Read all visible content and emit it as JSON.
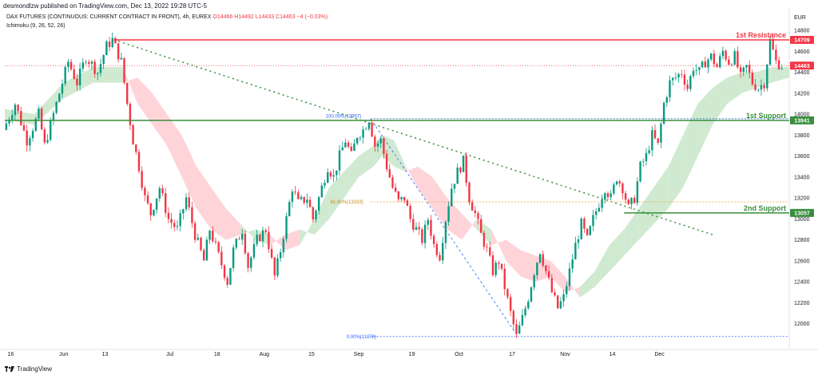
{
  "header": {
    "publisher_line": "desmondlzw published on TradingView.com, Dec 13, 2022 19:28 UTC-5",
    "symbol": "DAX FUTURES (CONTINUOUS: CURRENT CONTRACT IN FRONT), 4h, EUREX",
    "ohlc": {
      "o": "O14466",
      "h": "H14492",
      "l": "L14433",
      "c": "C14463",
      "chg": "−4 (−0.03%)"
    },
    "indicator": "Ichimoku (9, 26, 52, 26)"
  },
  "footer": {
    "brand": "TradingView",
    "brand_icon": "tradingview-logo-icon"
  },
  "chart_data": {
    "type": "candlestick",
    "currency": "EUR",
    "ylim": [
      11800,
      14800
    ],
    "y_ticks": [
      12000,
      12200,
      12400,
      12600,
      12800,
      13000,
      13200,
      13400,
      13600,
      13800,
      14000,
      14200,
      14400,
      14600,
      14800
    ],
    "x_ticks": [
      "16",
      "Jun",
      "13",
      "Jul",
      "18",
      "Aug",
      "15",
      "Sep",
      "19",
      "Oct",
      "17",
      "Nov",
      "14",
      "Dec"
    ],
    "colors": {
      "up": "#089981",
      "down": "#f23645",
      "resistance": "#f23645",
      "support": "#388e3c",
      "trend": "#388e3c",
      "fib": "#2962ff",
      "fib618": "#f0a030",
      "cloud_bull": "#c8e6c9",
      "cloud_bear": "#ffcdd2"
    },
    "levels": [
      {
        "label": "1st Resistance",
        "value": 14709,
        "tag": "14709",
        "color": "#f23645"
      },
      {
        "label": "1st Support",
        "value": 13941,
        "tag": "13941",
        "color": "#388e3c"
      },
      {
        "label": "2nd Support",
        "value": 13057,
        "tag": "13057",
        "color": "#388e3c"
      }
    ],
    "last_price": {
      "value": 14463,
      "tag": "14463"
    },
    "fib_labels": [
      {
        "text": "100.00%(13957)",
        "value": 13957
      },
      {
        "text": "61.80%(13163)",
        "value": 13163
      },
      {
        "text": "0.00%(11878)",
        "value": 11878
      }
    ],
    "price_path": [
      [
        0,
        13850
      ],
      [
        4,
        14100
      ],
      [
        8,
        13750
      ],
      [
        12,
        14000
      ],
      [
        14,
        13700
      ],
      [
        18,
        14100
      ],
      [
        22,
        14500
      ],
      [
        25,
        14300
      ],
      [
        28,
        14550
      ],
      [
        32,
        14400
      ],
      [
        35,
        14650
      ],
      [
        37,
        14709
      ],
      [
        40,
        14500
      ],
      [
        42,
        14100
      ],
      [
        44,
        13750
      ],
      [
        46,
        13500
      ],
      [
        48,
        13200
      ],
      [
        50,
        13050
      ],
      [
        53,
        13300
      ],
      [
        56,
        13000
      ],
      [
        59,
        12900
      ],
      [
        62,
        13200
      ],
      [
        65,
        12850
      ],
      [
        68,
        12600
      ],
      [
        70,
        12900
      ],
      [
        73,
        12650
      ],
      [
        76,
        12400
      ],
      [
        78,
        12700
      ],
      [
        81,
        12900
      ],
      [
        83,
        12550
      ],
      [
        86,
        12800
      ],
      [
        89,
        12900
      ],
      [
        92,
        12450
      ],
      [
        94,
        12700
      ],
      [
        96,
        13000
      ],
      [
        98,
        13300
      ],
      [
        100,
        13150
      ],
      [
        103,
        13200
      ],
      [
        105,
        13000
      ],
      [
        107,
        13200
      ],
      [
        110,
        13500
      ],
      [
        112,
        13400
      ],
      [
        114,
        13600
      ],
      [
        116,
        13750
      ],
      [
        118,
        13600
      ],
      [
        120,
        13800
      ],
      [
        122,
        13850
      ],
      [
        124,
        13957
      ],
      [
        126,
        13700
      ],
      [
        128,
        13750
      ],
      [
        130,
        13500
      ],
      [
        132,
        13300
      ],
      [
        134,
        13163
      ],
      [
        136,
        13200
      ],
      [
        138,
        13000
      ],
      [
        140,
        12900
      ],
      [
        142,
        12800
      ],
      [
        144,
        13000
      ],
      [
        146,
        12750
      ],
      [
        148,
        12650
      ],
      [
        150,
        13000
      ],
      [
        152,
        13300
      ],
      [
        154,
        13450
      ],
      [
        156,
        13550
      ],
      [
        158,
        13200
      ],
      [
        160,
        13050
      ],
      [
        162,
        12850
      ],
      [
        164,
        12700
      ],
      [
        166,
        12500
      ],
      [
        168,
        12600
      ],
      [
        170,
        12350
      ],
      [
        172,
        12100
      ],
      [
        174,
        11878
      ],
      [
        176,
        12050
      ],
      [
        178,
        12250
      ],
      [
        180,
        12500
      ],
      [
        182,
        12700
      ],
      [
        184,
        12500
      ],
      [
        186,
        12300
      ],
      [
        188,
        12150
      ],
      [
        190,
        12250
      ],
      [
        192,
        12500
      ],
      [
        194,
        12750
      ],
      [
        196,
        12950
      ],
      [
        198,
        12800
      ],
      [
        200,
        13000
      ],
      [
        202,
        13150
      ],
      [
        204,
        13300
      ],
      [
        206,
        13200
      ],
      [
        208,
        13400
      ],
      [
        210,
        13300
      ],
      [
        212,
        13100
      ],
      [
        214,
        13200
      ],
      [
        216,
        13500
      ],
      [
        218,
        13600
      ],
      [
        220,
        13800
      ],
      [
        222,
        13700
      ],
      [
        224,
        14100
      ],
      [
        226,
        14300
      ],
      [
        228,
        14350
      ],
      [
        230,
        14400
      ],
      [
        232,
        14250
      ],
      [
        234,
        14450
      ],
      [
        236,
        14400
      ],
      [
        238,
        14500
      ],
      [
        240,
        14550
      ],
      [
        242,
        14450
      ],
      [
        244,
        14600
      ],
      [
        246,
        14500
      ],
      [
        248,
        14550
      ],
      [
        250,
        14350
      ],
      [
        252,
        14450
      ],
      [
        254,
        14300
      ],
      [
        256,
        14250
      ],
      [
        258,
        14300
      ],
      [
        260,
        14700
      ],
      [
        262,
        14500
      ],
      [
        264,
        14463
      ]
    ],
    "cloud_path": [
      [
        0,
        14050,
        13950
      ],
      [
        10,
        14000,
        13900
      ],
      [
        20,
        14300,
        14150
      ],
      [
        30,
        14450,
        14300
      ],
      [
        40,
        14450,
        14300
      ],
      [
        45,
        14100,
        14350
      ],
      [
        50,
        13900,
        14200
      ],
      [
        55,
        13700,
        14000
      ],
      [
        60,
        13400,
        13800
      ],
      [
        65,
        13100,
        13500
      ],
      [
        70,
        12900,
        13300
      ],
      [
        75,
        12800,
        13100
      ],
      [
        80,
        12850,
        12950
      ],
      [
        85,
        12900,
        12800
      ],
      [
        90,
        12850,
        12750
      ],
      [
        95,
        12700,
        12850
      ],
      [
        100,
        12750,
        12900
      ],
      [
        105,
        13000,
        12850
      ],
      [
        110,
        13300,
        13000
      ],
      [
        115,
        13450,
        13200
      ],
      [
        120,
        13600,
        13400
      ],
      [
        125,
        13700,
        13500
      ],
      [
        128,
        13800,
        13600
      ],
      [
        132,
        13750,
        13500
      ],
      [
        136,
        13500,
        13450
      ],
      [
        140,
        13300,
        13500
      ],
      [
        145,
        13100,
        13400
      ],
      [
        150,
        12900,
        13200
      ],
      [
        155,
        12800,
        13050
      ],
      [
        160,
        13000,
        12900
      ],
      [
        165,
        12900,
        12750
      ],
      [
        170,
        12600,
        12800
      ],
      [
        175,
        12450,
        12700
      ],
      [
        180,
        12400,
        12650
      ],
      [
        185,
        12450,
        12600
      ],
      [
        190,
        12300,
        12450
      ],
      [
        195,
        12350,
        12250
      ],
      [
        200,
        12500,
        12350
      ],
      [
        205,
        12750,
        12500
      ],
      [
        210,
        12900,
        12650
      ],
      [
        215,
        13100,
        12800
      ],
      [
        220,
        13300,
        12950
      ],
      [
        225,
        13500,
        13100
      ],
      [
        230,
        13800,
        13300
      ],
      [
        235,
        14100,
        13600
      ],
      [
        240,
        14250,
        13900
      ],
      [
        245,
        14350,
        14100
      ],
      [
        250,
        14400,
        14200
      ],
      [
        255,
        14400,
        14250
      ],
      [
        260,
        14450,
        14300
      ],
      [
        266,
        14450,
        14350
      ]
    ]
  }
}
